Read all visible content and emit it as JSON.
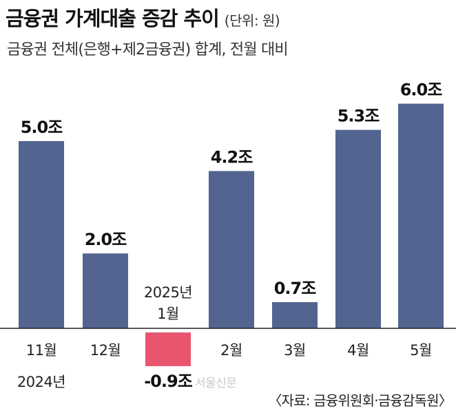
{
  "header": {
    "title": "금융권 가계대출 증감 추이",
    "unit": "(단위: 원)",
    "subtitle": "금융권 전체(은행+제2금융권) 합계, 전월 대비"
  },
  "footer": {
    "source": "〈자료: 금융위원회·금융감독원〉",
    "watermark": "서울신문"
  },
  "colors": {
    "positive": "#52648f",
    "negative": "#e9556f",
    "axis": "#222222"
  },
  "chart_data": {
    "type": "bar",
    "categories": [
      "11월",
      "12월",
      "1월",
      "2월",
      "3월",
      "4월",
      "5월"
    ],
    "year_labels": [
      "2024년",
      "2025년"
    ],
    "values": [
      5.0,
      2.0,
      -0.9,
      4.2,
      0.7,
      5.3,
      6.0
    ],
    "value_labels": [
      "5.0조",
      "2.0조",
      "-0.9조",
      "4.2조",
      "0.7조",
      "5.3조",
      "6.0조"
    ],
    "title": "금융권 가계대출 증감 추이",
    "xlabel": "",
    "ylabel": "",
    "grid": false
  }
}
